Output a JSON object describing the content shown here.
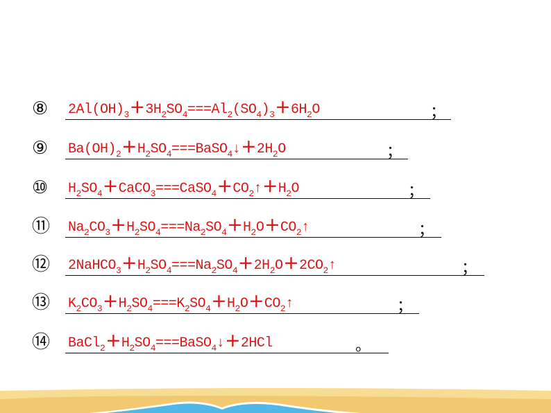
{
  "items": [
    {
      "num": "⑧",
      "end": "；",
      "parts": [
        [
          "2Al(OH)"
        ],
        [
          "3",
          1
        ],
        [
          "＋"
        ],
        [
          "3H"
        ],
        [
          "2",
          1
        ],
        [
          "SO"
        ],
        [
          "4",
          1
        ],
        [
          "===Al"
        ],
        [
          "2",
          1
        ],
        [
          "(SO"
        ],
        [
          "4",
          1
        ],
        [
          ")"
        ],
        [
          "3",
          1
        ],
        [
          "＋"
        ],
        [
          "6H"
        ],
        [
          "2",
          1
        ],
        [
          "O"
        ]
      ]
    },
    {
      "num": "⑨",
      "end": "；",
      "parts": [
        [
          "Ba(OH)"
        ],
        [
          "2",
          1
        ],
        [
          "＋"
        ],
        [
          "H"
        ],
        [
          "2",
          1
        ],
        [
          "SO"
        ],
        [
          "4",
          1
        ],
        [
          "===BaSO"
        ],
        [
          "4",
          1
        ],
        [
          "↓"
        ],
        [
          "＋"
        ],
        [
          "2H"
        ],
        [
          "2",
          1
        ],
        [
          "O"
        ]
      ]
    },
    {
      "num": "⑩",
      "end": "；",
      "parts": [
        [
          "H"
        ],
        [
          "2",
          1
        ],
        [
          "SO"
        ],
        [
          "4",
          1
        ],
        [
          "＋"
        ],
        [
          "CaCO"
        ],
        [
          "3",
          1
        ],
        [
          "===CaSO"
        ],
        [
          "4",
          1
        ],
        [
          "＋"
        ],
        [
          "CO"
        ],
        [
          "2",
          1
        ],
        [
          "↑"
        ],
        [
          "＋"
        ],
        [
          "H"
        ],
        [
          "2",
          1
        ],
        [
          "O"
        ]
      ]
    },
    {
      "num": "⑪",
      "end": "；",
      "parts": [
        [
          "Na"
        ],
        [
          "2",
          1
        ],
        [
          "CO"
        ],
        [
          "3",
          1
        ],
        [
          "＋"
        ],
        [
          "H"
        ],
        [
          "2",
          1
        ],
        [
          "SO"
        ],
        [
          "4",
          1
        ],
        [
          "===Na"
        ],
        [
          "2",
          1
        ],
        [
          "SO"
        ],
        [
          "4",
          1
        ],
        [
          "＋"
        ],
        [
          "H"
        ],
        [
          "2",
          1
        ],
        [
          "O"
        ],
        [
          "＋"
        ],
        [
          "CO"
        ],
        [
          "2",
          1
        ],
        [
          "↑"
        ]
      ]
    },
    {
      "num": "⑫",
      "end": "；",
      "parts": [
        [
          "2NaHCO"
        ],
        [
          "3",
          1
        ],
        [
          "＋"
        ],
        [
          "H"
        ],
        [
          "2",
          1
        ],
        [
          "SO"
        ],
        [
          "4",
          1
        ],
        [
          "===Na"
        ],
        [
          "2",
          1
        ],
        [
          "SO"
        ],
        [
          "4",
          1
        ],
        [
          "＋"
        ],
        [
          "2H"
        ],
        [
          "2",
          1
        ],
        [
          "O"
        ],
        [
          "＋"
        ],
        [
          "2CO"
        ],
        [
          "2",
          1
        ],
        [
          "↑"
        ]
      ]
    },
    {
      "num": "⑬",
      "end": "；",
      "parts": [
        [
          "K"
        ],
        [
          "2",
          1
        ],
        [
          "CO"
        ],
        [
          "3",
          1
        ],
        [
          "＋"
        ],
        [
          "H"
        ],
        [
          "2",
          1
        ],
        [
          "SO"
        ],
        [
          "4",
          1
        ],
        [
          "===K"
        ],
        [
          "2",
          1
        ],
        [
          "SO"
        ],
        [
          "4",
          1
        ],
        [
          "＋"
        ],
        [
          "H"
        ],
        [
          "2",
          1
        ],
        [
          "O"
        ],
        [
          "＋"
        ],
        [
          "CO"
        ],
        [
          "2",
          1
        ],
        [
          "↑"
        ]
      ]
    },
    {
      "num": "⑭",
      "end": "。",
      "parts": [
        [
          "BaCl"
        ],
        [
          "2",
          1
        ],
        [
          "＋"
        ],
        [
          "H"
        ],
        [
          "2",
          1
        ],
        [
          "SO"
        ],
        [
          "4",
          1
        ],
        [
          "===BaSO"
        ],
        [
          "4",
          1
        ],
        [
          "↓"
        ],
        [
          "＋"
        ],
        [
          "2HCl"
        ]
      ]
    }
  ],
  "colors": {
    "answer": "#d81818",
    "sand": "#f8dc94",
    "sea": "#4fb8e6"
  }
}
